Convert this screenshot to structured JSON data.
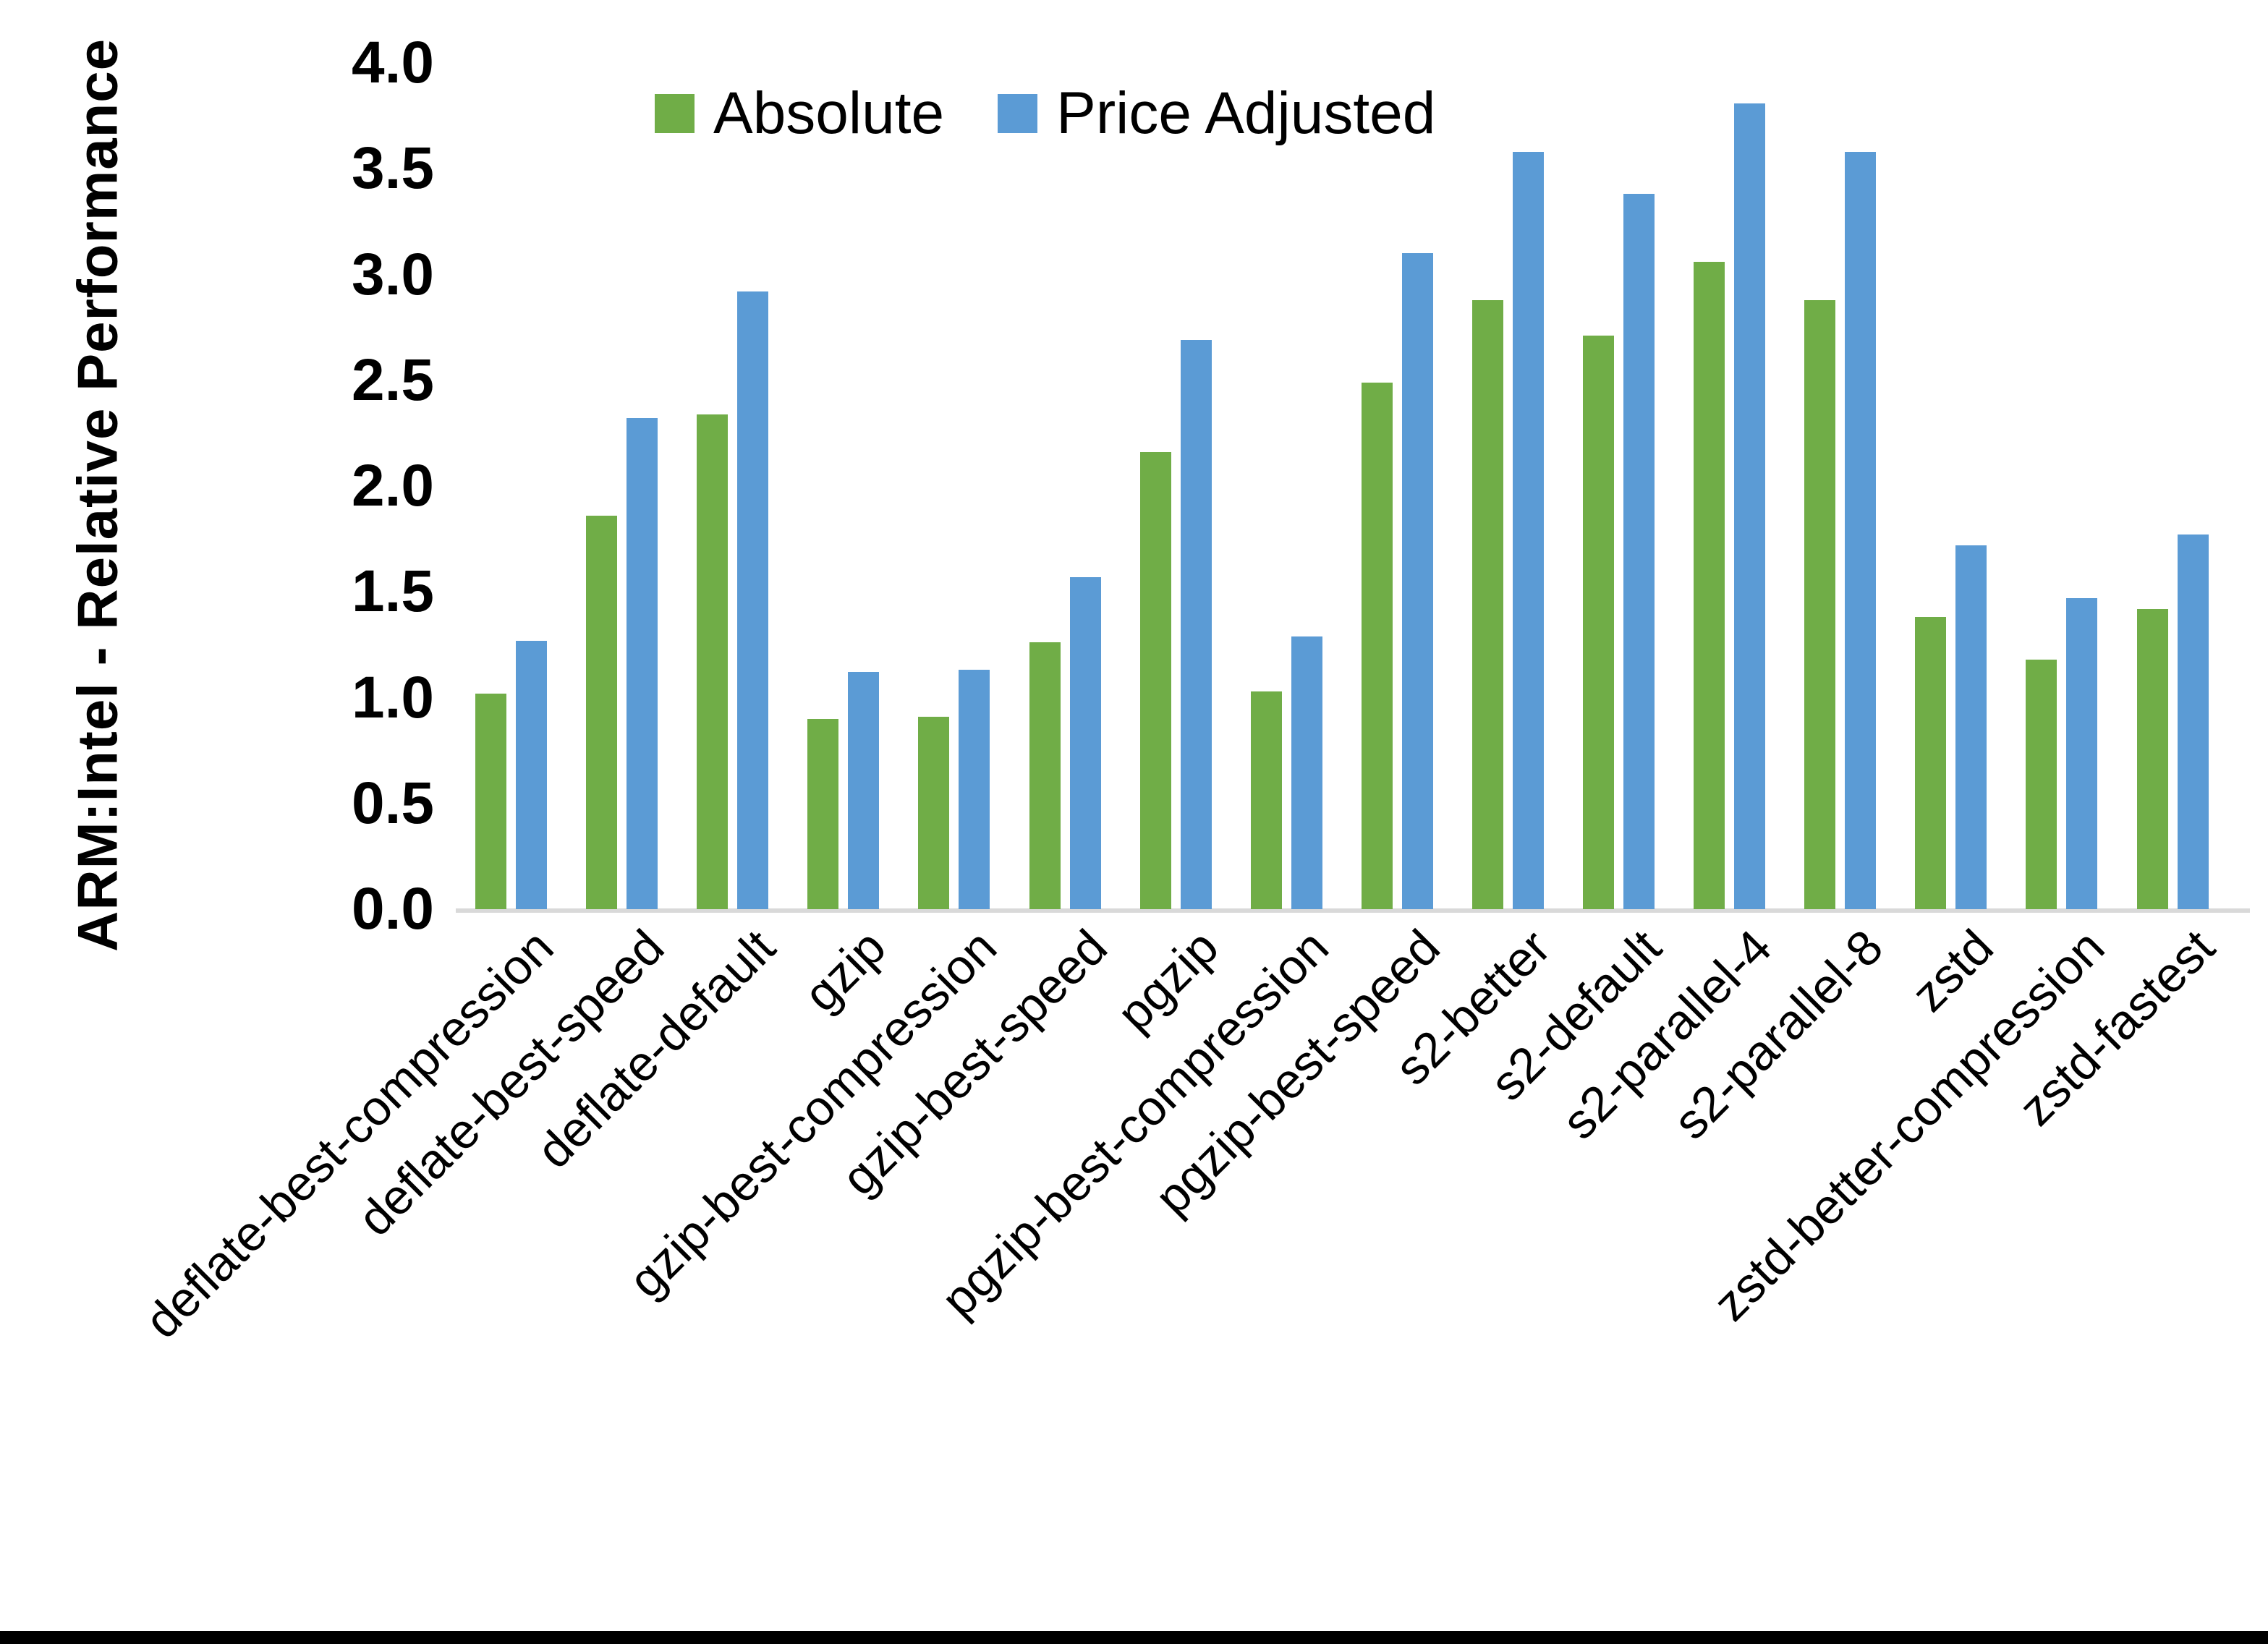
{
  "figure": {
    "background_color": "#FFFFFF",
    "bottom_border_color": "#000000"
  },
  "chart_data": {
    "type": "bar",
    "title": "",
    "xlabel": "",
    "ylabel": "ARM:Intel - Relative Performance",
    "ylim": [
      0.0,
      4.0
    ],
    "ytick_step": 0.5,
    "ytick_labels": [
      "0.0",
      "0.5",
      "1.0",
      "1.5",
      "2.0",
      "2.5",
      "3.0",
      "3.5",
      "4.0"
    ],
    "grid": false,
    "legend_position": "top",
    "axis_line_color": "#D9D9D9",
    "text_color": "#000000",
    "categories": [
      "deflate-best-compression",
      "deflate-best-speed",
      "deflate-default",
      "gzip",
      "gzip-best-compression",
      "gzip-best-speed",
      "pgzip",
      "pgzip-best-compression",
      "pgzip-best-speed",
      "s2-better",
      "s2-default",
      "s2-parallel-4",
      "s2-parallel-8",
      "zstd",
      "zstd-better-compression",
      "zstd-fastest"
    ],
    "series": [
      {
        "name": "Absolute",
        "color": "#70AD47",
        "values": [
          1.02,
          1.86,
          2.34,
          0.9,
          0.91,
          1.26,
          2.16,
          1.03,
          2.49,
          2.88,
          2.71,
          3.06,
          2.88,
          1.38,
          1.18,
          1.42
        ]
      },
      {
        "name": "Price Adjusted",
        "color": "#5B9BD5",
        "values": [
          1.27,
          2.32,
          2.92,
          1.12,
          1.13,
          1.57,
          2.69,
          1.29,
          3.1,
          3.58,
          3.38,
          3.81,
          3.58,
          1.72,
          1.47,
          1.77
        ]
      }
    ]
  }
}
